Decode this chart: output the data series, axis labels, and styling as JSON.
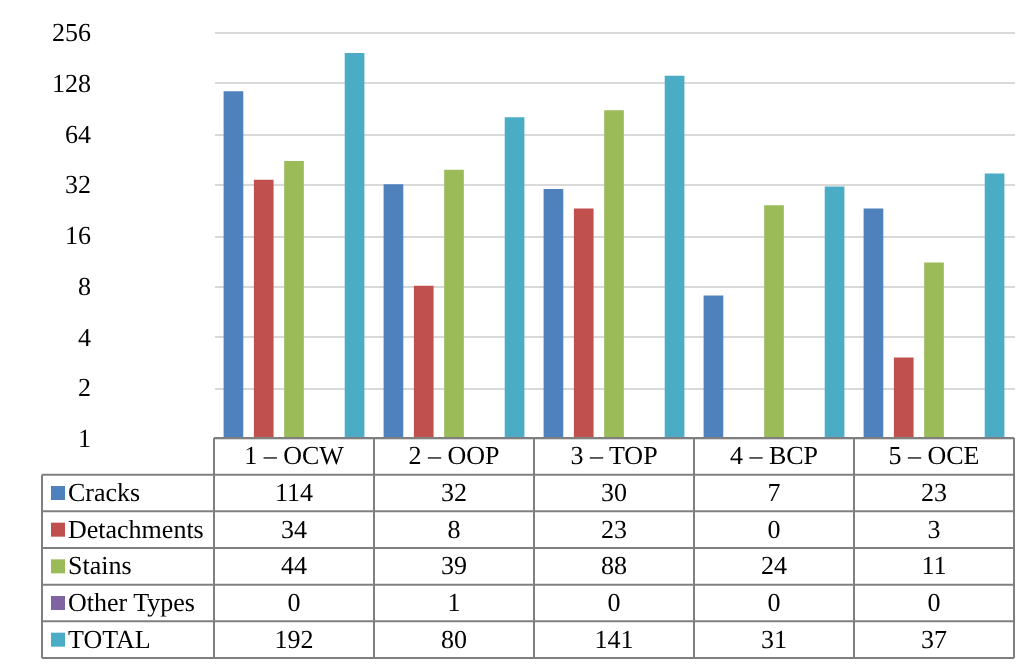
{
  "chart_data": {
    "type": "bar",
    "categories": [
      "1 – OCW",
      "2 – OOP",
      "3 – TOP",
      "4 – BCP",
      "5 – OCE"
    ],
    "series": [
      {
        "name": "Cracks",
        "color": "#4f81bd",
        "values": [
          114,
          32,
          30,
          7,
          23
        ],
        "value_labels": [
          "114",
          "32",
          "30",
          "7",
          "23"
        ]
      },
      {
        "name": "Detachments",
        "color": "#c0504d",
        "values": [
          34,
          8,
          23,
          null,
          3
        ],
        "value_labels": [
          "34",
          "8",
          "23",
          "0",
          "3"
        ]
      },
      {
        "name": "Stains",
        "color": "#9bbb59",
        "values": [
          44,
          39,
          88,
          24,
          11
        ],
        "value_labels": [
          "44",
          "39",
          "88",
          "24",
          "11"
        ]
      },
      {
        "name": "Other Types",
        "color": "#8064a2",
        "values": [
          null,
          null,
          null,
          null,
          null
        ],
        "value_labels": [
          "0",
          "1",
          "0",
          "0",
          "0"
        ]
      },
      {
        "name": "TOTAL",
        "color": "#4bacc6",
        "values": [
          192,
          80,
          141,
          31,
          37
        ],
        "value_labels": [
          "192",
          "80",
          "141",
          "31",
          "37"
        ]
      }
    ],
    "log": true,
    "ylim": [
      1,
      256
    ],
    "yticks": [
      1,
      2,
      4,
      8,
      16,
      32,
      64,
      128,
      256
    ],
    "grid": "y",
    "legend": "bottom"
  }
}
